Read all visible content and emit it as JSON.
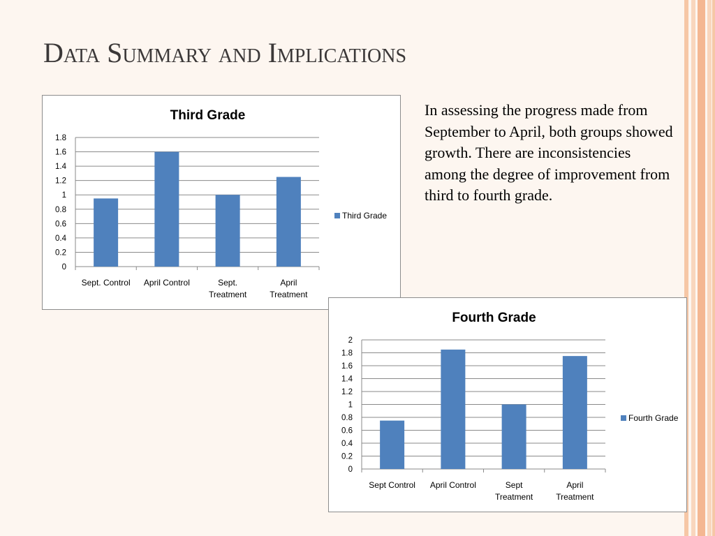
{
  "slide": {
    "title": "Data Summary and Implications",
    "body": "In assessing the progress made from September to April, both groups showed growth.  There are inconsistencies among the degree of improvement from third to fourth grade."
  },
  "colors": {
    "bar": "#4f81bd",
    "background": "#fdf6f0",
    "stripes": [
      "#f6c7a6",
      "#f9d6bd",
      "#f4b792"
    ]
  },
  "chart_data": [
    {
      "type": "bar",
      "title": "Third Grade",
      "categories": [
        "Sept. Control",
        "April Control",
        "Sept.\nTreatment",
        "April\nTreatment"
      ],
      "series": [
        {
          "name": "Third Grade",
          "values": [
            0.95,
            1.6,
            1.0,
            1.25
          ]
        }
      ],
      "ylim": [
        0,
        1.8
      ],
      "yticks": [
        "0",
        "0.2",
        "0.4",
        "0.6",
        "0.8",
        "1",
        "1.2",
        "1.4",
        "1.6",
        "1.8"
      ],
      "grid": true,
      "legend": "right"
    },
    {
      "type": "bar",
      "title": "Fourth Grade",
      "categories": [
        "Sept Control",
        "April Control",
        "Sept\nTreatment",
        "April\nTreatment"
      ],
      "series": [
        {
          "name": "Fourth Grade",
          "values": [
            0.75,
            1.85,
            1.0,
            1.75
          ]
        }
      ],
      "ylim": [
        0,
        2
      ],
      "yticks": [
        "0",
        "0.2",
        "0.4",
        "0.6",
        "0.8",
        "1",
        "1.2",
        "1.4",
        "1.6",
        "1.8",
        "2"
      ],
      "grid": true,
      "legend": "right"
    }
  ]
}
